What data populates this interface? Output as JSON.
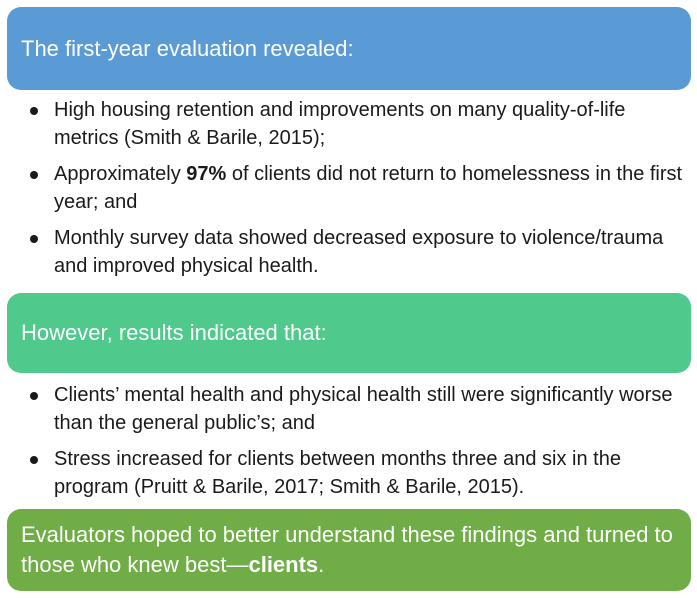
{
  "section1": {
    "heading": "The first-year evaluation revealed:",
    "color": "#5b9bd5",
    "items": [
      {
        "text": "High housing retention and improvements on many quality-of-life metrics (Smith & Barile, 2015);"
      },
      {
        "pre": "Approximately ",
        "bold": "97%",
        "post": " of clients did not return to homelessness in the first year; and"
      },
      {
        "text": "Monthly survey data showed decreased exposure to violence/trauma and improved physical health."
      }
    ]
  },
  "section2": {
    "heading": "However, results indicated that:",
    "color": "#4fc98c",
    "items": [
      {
        "text": "Clients’ mental health and physical health still were significantly worse than the general public’s; and"
      },
      {
        "text": "Stress increased for clients between months three and six in the program (Pruitt & Barile, 2017; Smith & Barile, 2015)."
      }
    ]
  },
  "conclusion": {
    "pre": "Evaluators hoped to better understand these findings and turned to those who knew best—",
    "bold": "clients",
    "post": ".",
    "color": "#70ad47"
  }
}
